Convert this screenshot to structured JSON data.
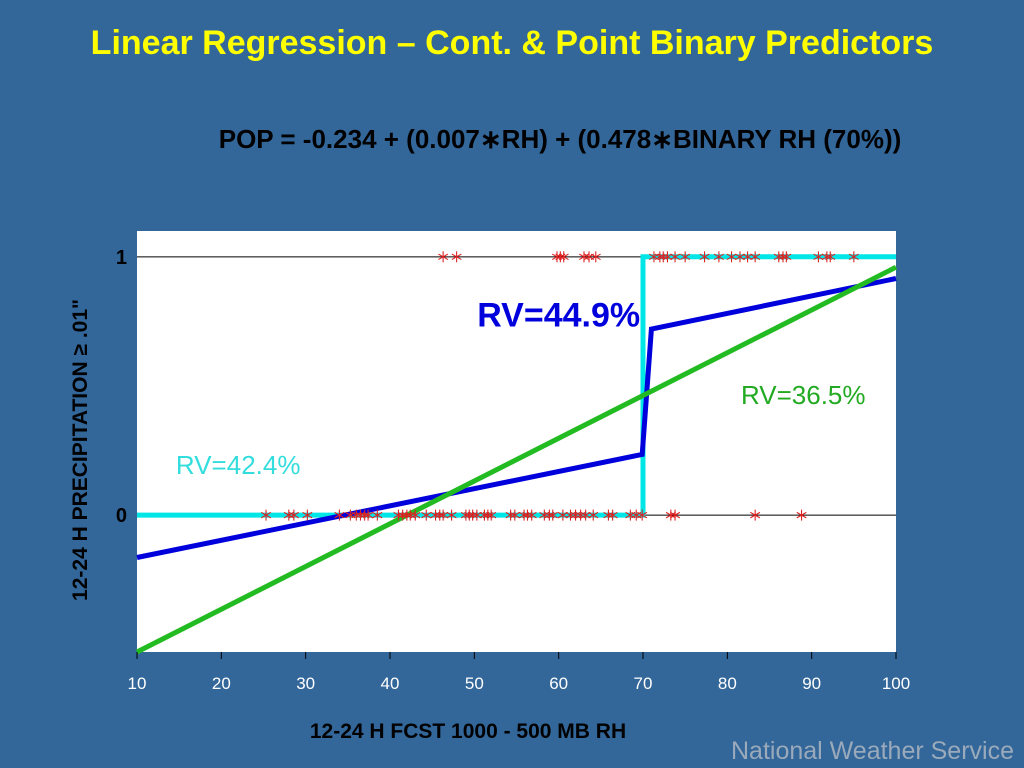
{
  "slide": {
    "title": "Linear Regression – Cont. & Point Binary Predictors",
    "equation": "POP = -0.234 + (0.007∗RH) + (0.478∗BINARY RH (70%))",
    "footer": "National Weather Service"
  },
  "chart_data": {
    "type": "scatter",
    "xlabel": "12-24 H FCST 1000 - 500 MB RH",
    "ylabel": "12-24 H PRECIPITATION ≥ .01\"",
    "xlim": [
      10,
      100
    ],
    "ylim": [
      -0.53,
      1.1
    ],
    "x_ticks": [
      10,
      20,
      30,
      40,
      50,
      60,
      70,
      80,
      90,
      100
    ],
    "y_ticks": [
      0,
      1
    ],
    "gridlines_y": [
      0,
      1
    ],
    "annotations": [
      {
        "text": "RV=44.9%",
        "color": "#0000dd",
        "x": 60,
        "y": 0.73,
        "size": "large"
      },
      {
        "text": "RV=36.5%",
        "color": "#22aa22",
        "x": 89,
        "y": 0.43,
        "size": "medium"
      },
      {
        "text": "RV=42.4%",
        "color": "#33dddd",
        "x": 22,
        "y": 0.16,
        "size": "medium"
      }
    ],
    "series": [
      {
        "type": "scatter",
        "color": "#dd2222",
        "marker": "asterisk",
        "points": [
          [
            46.3,
            1
          ],
          [
            47.9,
            1
          ],
          [
            59.8,
            1
          ],
          [
            60.2,
            1
          ],
          [
            60.6,
            1
          ],
          [
            63.0,
            1
          ],
          [
            63.6,
            1
          ],
          [
            64.4,
            1
          ],
          [
            71.3,
            1
          ],
          [
            72.0,
            1
          ],
          [
            72.4,
            1
          ],
          [
            72.9,
            1
          ],
          [
            73.8,
            1
          ],
          [
            75.0,
            1
          ],
          [
            77.3,
            1
          ],
          [
            79.0,
            1
          ],
          [
            80.5,
            1
          ],
          [
            81.5,
            1
          ],
          [
            82.4,
            1
          ],
          [
            83.3,
            1
          ],
          [
            86.1,
            1
          ],
          [
            86.6,
            1
          ],
          [
            87.0,
            1
          ],
          [
            90.8,
            1
          ],
          [
            91.8,
            1
          ],
          [
            92.2,
            1
          ],
          [
            95.0,
            1
          ],
          [
            25.3,
            0
          ],
          [
            28.0,
            0
          ],
          [
            28.6,
            0
          ],
          [
            30.2,
            0
          ],
          [
            34.0,
            0
          ],
          [
            35.3,
            0
          ],
          [
            36.0,
            0
          ],
          [
            36.5,
            0
          ],
          [
            37.0,
            0
          ],
          [
            37.4,
            0
          ],
          [
            38.5,
            0
          ],
          [
            41.0,
            0
          ],
          [
            41.5,
            0
          ],
          [
            42.0,
            0
          ],
          [
            42.4,
            0
          ],
          [
            43.0,
            0
          ],
          [
            44.3,
            0
          ],
          [
            45.4,
            0
          ],
          [
            45.9,
            0
          ],
          [
            46.3,
            0
          ],
          [
            47.3,
            0
          ],
          [
            49.0,
            0
          ],
          [
            49.4,
            0
          ],
          [
            49.8,
            0
          ],
          [
            50.3,
            0
          ],
          [
            51.2,
            0
          ],
          [
            51.6,
            0
          ],
          [
            52.0,
            0
          ],
          [
            54.3,
            0
          ],
          [
            54.8,
            0
          ],
          [
            55.9,
            0
          ],
          [
            56.3,
            0
          ],
          [
            56.8,
            0
          ],
          [
            58.3,
            0
          ],
          [
            58.9,
            0
          ],
          [
            59.3,
            0
          ],
          [
            60.5,
            0
          ],
          [
            61.4,
            0
          ],
          [
            62.0,
            0
          ],
          [
            62.6,
            0
          ],
          [
            63.2,
            0
          ],
          [
            64.1,
            0
          ],
          [
            65.9,
            0
          ],
          [
            66.4,
            0
          ],
          [
            68.5,
            0
          ],
          [
            69.2,
            0
          ],
          [
            69.9,
            0
          ],
          [
            73.3,
            0
          ],
          [
            73.8,
            0
          ],
          [
            83.3,
            0
          ],
          [
            88.8,
            0
          ]
        ]
      },
      {
        "type": "line",
        "color": "#00e5e5",
        "points": [
          [
            10,
            0
          ],
          [
            70,
            0
          ],
          [
            70,
            1
          ],
          [
            100,
            1
          ]
        ]
      },
      {
        "type": "line",
        "color": "#0000dd",
        "points": [
          [
            10,
            -0.164
          ],
          [
            69.9,
            0.235
          ],
          [
            71.0,
            0.72
          ],
          [
            100,
            0.916
          ]
        ]
      },
      {
        "type": "line",
        "color": "#22bb22",
        "points": [
          [
            10,
            -0.53
          ],
          [
            100,
            0.96
          ]
        ]
      }
    ]
  }
}
